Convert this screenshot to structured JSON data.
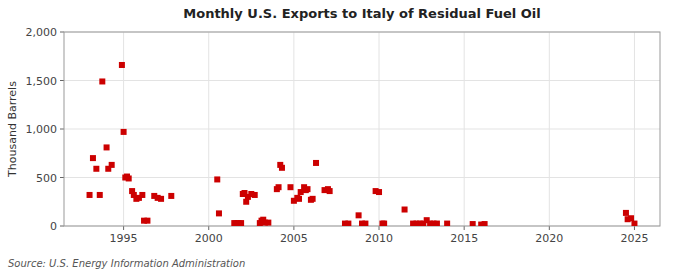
{
  "chart_data": {
    "type": "scatter",
    "title": "Monthly U.S. Exports to Italy of Residual Fuel Oil",
    "ylabel": "Thousand Barrels",
    "annotation": "Source: U.S. Energy Information Administration",
    "color": "#cc0000",
    "marker": "square",
    "grid": true,
    "xlim": [
      1991.5,
      2026.5
    ],
    "ylim": [
      0,
      2000
    ],
    "xticks": [
      1995,
      2000,
      2005,
      2010,
      2015,
      2020,
      2025
    ],
    "yticks": [
      0,
      500,
      {
        "value": 1000,
        "label": "1,000"
      },
      {
        "value": 1500,
        "label": "1,500"
      },
      {
        "value": 2000,
        "label": "2,000"
      }
    ],
    "x": [
      1993.0,
      1993.2,
      1993.4,
      1993.6,
      1993.75,
      1994.0,
      1994.1,
      1994.3,
      1994.9,
      1995.0,
      1995.1,
      1995.2,
      1995.3,
      1995.5,
      1995.6,
      1995.75,
      1995.9,
      1996.1,
      1996.2,
      1996.4,
      1996.8,
      1997.0,
      1997.2,
      1997.8,
      2000.5,
      2000.6,
      2001.5,
      2001.6,
      2001.7,
      2001.8,
      2001.9,
      2002.0,
      2002.1,
      2002.2,
      2002.3,
      2002.5,
      2002.7,
      2003.0,
      2003.1,
      2003.2,
      2003.3,
      2003.5,
      2004.0,
      2004.1,
      2004.2,
      2004.3,
      2004.8,
      2005.0,
      2005.2,
      2005.3,
      2005.4,
      2005.6,
      2005.7,
      2005.8,
      2006.0,
      2006.1,
      2006.3,
      2006.8,
      2007.0,
      2007.1,
      2008.0,
      2008.2,
      2008.8,
      2009.0,
      2009.2,
      2009.8,
      2010.0,
      2010.2,
      2010.3,
      2011.5,
      2012.0,
      2012.2,
      2012.4,
      2012.6,
      2012.8,
      2013.0,
      2013.2,
      2013.4,
      2014.0,
      2015.5,
      2016.0,
      2016.2,
      2024.5,
      2024.6,
      2024.8,
      2025.0
    ],
    "values": [
      320,
      700,
      590,
      320,
      1490,
      810,
      590,
      630,
      1660,
      970,
      500,
      510,
      490,
      360,
      320,
      280,
      290,
      320,
      55,
      55,
      310,
      290,
      280,
      310,
      480,
      130,
      30,
      25,
      30,
      25,
      30,
      330,
      340,
      250,
      300,
      330,
      320,
      30,
      55,
      65,
      35,
      35,
      380,
      400,
      630,
      600,
      400,
      260,
      290,
      280,
      350,
      400,
      370,
      380,
      270,
      280,
      650,
      370,
      380,
      360,
      25,
      25,
      110,
      25,
      25,
      360,
      350,
      25,
      25,
      170,
      25,
      25,
      25,
      25,
      60,
      25,
      25,
      25,
      25,
      20,
      15,
      20,
      135,
      70,
      80,
      25
    ]
  }
}
